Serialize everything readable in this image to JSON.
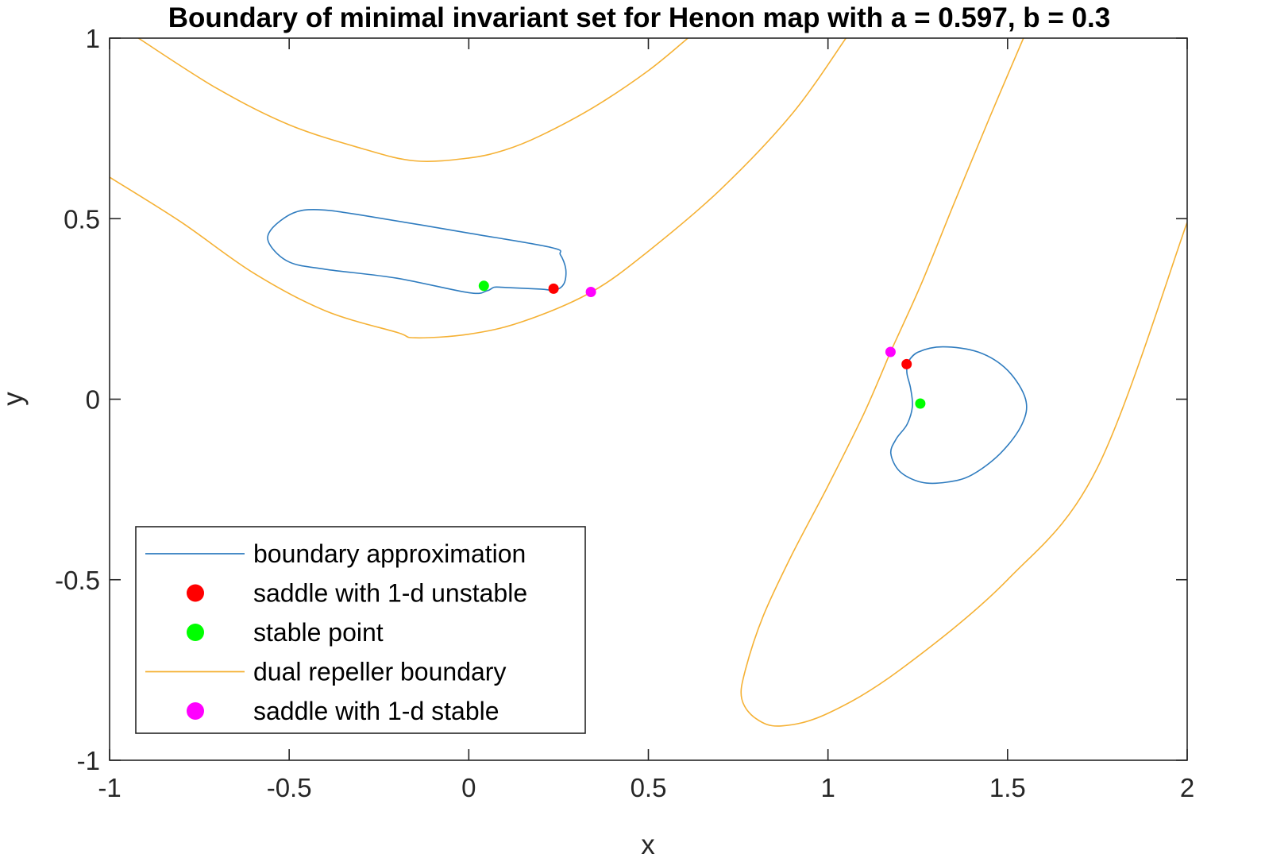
{
  "chart_data": {
    "type": "line",
    "title": "Boundary of minimal invariant set for Henon map with a = 0.597, b = 0.3",
    "xlabel": "x",
    "ylabel": "y",
    "xlim": [
      -1,
      2
    ],
    "ylim": [
      -1,
      1
    ],
    "x_ticks": [
      -1,
      -0.5,
      0,
      0.5,
      1,
      1.5,
      2
    ],
    "y_ticks": [
      -1,
      -0.5,
      0,
      0.5,
      1
    ],
    "x_tick_labels": [
      "-1",
      "-0.5",
      "0",
      "0.5",
      "1",
      "1.5",
      "2"
    ],
    "y_tick_labels": [
      "-1",
      "-0.5",
      "0",
      "0.5",
      "1"
    ],
    "grid": false,
    "legend_position": "bottom-left",
    "series": [
      {
        "name": "boundary approximation",
        "kind": "line",
        "color": "#2f7cbf",
        "curves": [
          [
            [
              0.09,
              0.31
            ],
            [
              0.2,
              0.305
            ],
            [
              0.24,
              0.302
            ],
            [
              0.265,
              0.32
            ],
            [
              0.27,
              0.36
            ],
            [
              0.255,
              0.4
            ],
            [
              0.23,
              0.42
            ],
            [
              0.0,
              0.46
            ],
            [
              -0.3,
              0.51
            ],
            [
              -0.42,
              0.525
            ],
            [
              -0.49,
              0.515
            ],
            [
              -0.55,
              0.47
            ],
            [
              -0.555,
              0.43
            ],
            [
              -0.5,
              0.38
            ],
            [
              -0.4,
              0.36
            ],
            [
              -0.2,
              0.335
            ],
            [
              0.0,
              0.295
            ],
            [
              0.05,
              0.3
            ],
            [
              0.07,
              0.31
            ],
            [
              0.09,
              0.31
            ]
          ],
          [
            [
              1.22,
              0.1
            ],
            [
              1.25,
              0.13
            ],
            [
              1.32,
              0.145
            ],
            [
              1.42,
              0.13
            ],
            [
              1.5,
              0.08
            ],
            [
              1.55,
              0.0
            ],
            [
              1.54,
              -0.07
            ],
            [
              1.48,
              -0.15
            ],
            [
              1.4,
              -0.21
            ],
            [
              1.33,
              -0.23
            ],
            [
              1.26,
              -0.23
            ],
            [
              1.2,
              -0.2
            ],
            [
              1.175,
              -0.15
            ],
            [
              1.19,
              -0.11
            ],
            [
              1.22,
              -0.07
            ],
            [
              1.235,
              -0.02
            ],
            [
              1.23,
              0.03
            ],
            [
              1.22,
              0.07
            ],
            [
              1.22,
              0.1
            ]
          ]
        ]
      },
      {
        "name": "saddle with 1-d unstable",
        "kind": "points",
        "color": "#ff0000",
        "points": [
          [
            0.236,
            0.306
          ],
          [
            1.219,
            0.097
          ]
        ]
      },
      {
        "name": "stable point",
        "kind": "points",
        "color": "#00ff00",
        "points": [
          [
            0.042,
            0.314
          ],
          [
            1.257,
            -0.012
          ]
        ]
      },
      {
        "name": "dual repeller boundary",
        "kind": "line",
        "color": "#f5b134",
        "curves": [
          [
            [
              -0.92,
              1.0
            ],
            [
              -0.7,
              0.86
            ],
            [
              -0.5,
              0.76
            ],
            [
              -0.3,
              0.695
            ],
            [
              -0.15,
              0.66
            ],
            [
              0.0,
              0.668
            ],
            [
              0.1,
              0.69
            ],
            [
              0.2,
              0.73
            ],
            [
              0.35,
              0.81
            ],
            [
              0.5,
              0.91
            ],
            [
              0.61,
              1.0
            ]
          ],
          [
            [
              -1.0,
              0.615
            ],
            [
              -0.8,
              0.49
            ],
            [
              -0.6,
              0.35
            ],
            [
              -0.4,
              0.245
            ],
            [
              -0.2,
              0.185
            ],
            [
              -0.15,
              0.17
            ],
            [
              0.0,
              0.18
            ],
            [
              0.15,
              0.215
            ],
            [
              0.34,
              0.296
            ],
            [
              0.5,
              0.41
            ],
            [
              0.7,
              0.58
            ],
            [
              0.9,
              0.79
            ],
            [
              1.05,
              1.0
            ]
          ],
          [
            [
              1.175,
              0.133
            ],
            [
              1.1,
              -0.04
            ],
            [
              1.0,
              -0.24
            ],
            [
              0.9,
              -0.43
            ],
            [
              0.82,
              -0.6
            ],
            [
              0.77,
              -0.75
            ],
            [
              0.76,
              -0.83
            ],
            [
              0.8,
              -0.885
            ],
            [
              0.87,
              -0.905
            ],
            [
              1.0,
              -0.87
            ],
            [
              1.2,
              -0.75
            ],
            [
              1.5,
              -0.5
            ],
            [
              1.75,
              -0.19
            ],
            [
              2.0,
              0.49
            ]
          ],
          [
            [
              1.175,
              0.133
            ],
            [
              1.26,
              0.32
            ],
            [
              1.35,
              0.54
            ],
            [
              1.45,
              0.78
            ],
            [
              1.54,
              0.99
            ],
            [
              1.545,
              1.0
            ]
          ]
        ]
      },
      {
        "name": "saddle with 1-d stable",
        "kind": "points",
        "color": "#ff00ff",
        "points": [
          [
            0.34,
            0.297
          ],
          [
            1.174,
            0.131
          ]
        ]
      }
    ]
  }
}
